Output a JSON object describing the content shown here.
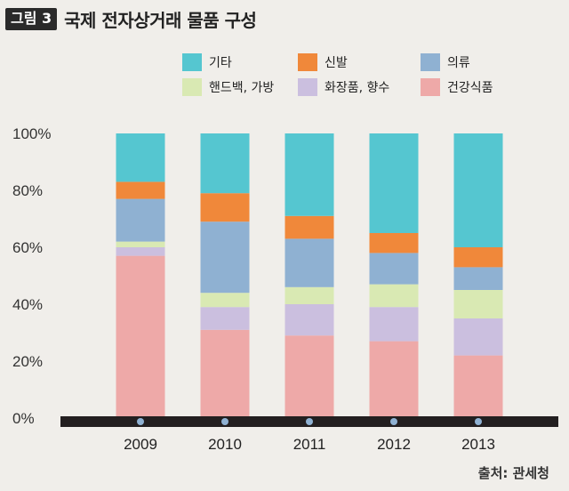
{
  "header": {
    "badge": "그림 3",
    "title": "국제 전자상거래 물품 구성"
  },
  "source": "출처: 관세청",
  "chart_data": {
    "type": "bar",
    "stacked": true,
    "percent": true,
    "categories": [
      "2009",
      "2010",
      "2011",
      "2012",
      "2013"
    ],
    "ylim": [
      0,
      100
    ],
    "yticks": [
      "0%",
      "20%",
      "40%",
      "60%",
      "80%",
      "100%"
    ],
    "legend_position": "top",
    "series": [
      {
        "name": "건강식품",
        "color": "#eea9a8",
        "values": [
          57,
          31,
          29,
          27,
          22
        ]
      },
      {
        "name": "화장품, 향수",
        "color": "#cbbfdf",
        "values": [
          3,
          8,
          11,
          12,
          13
        ]
      },
      {
        "name": "핸드백, 가방",
        "color": "#d9e9b3",
        "values": [
          2,
          5,
          6,
          8,
          10
        ]
      },
      {
        "name": "의류",
        "color": "#8fb1d2",
        "values": [
          15,
          25,
          17,
          11,
          8
        ]
      },
      {
        "name": "신발",
        "color": "#f0883a",
        "values": [
          6,
          10,
          8,
          7,
          7
        ]
      },
      {
        "name": "기타",
        "color": "#55c6d0",
        "values": [
          17,
          21,
          29,
          35,
          40
        ]
      }
    ]
  }
}
